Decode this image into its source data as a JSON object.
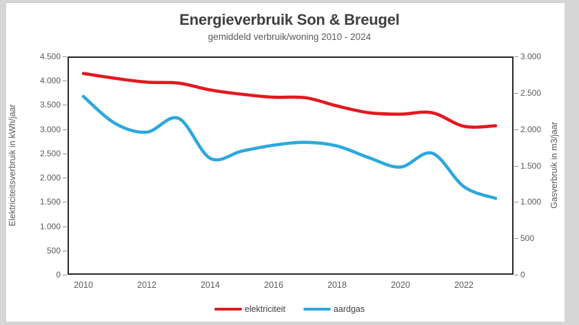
{
  "title": "Energieverbruik Son & Breugel",
  "subtitle": "gemiddeld verbruik/woning 2010 - 2024",
  "colors": {
    "elektriciteit": "#e2191f",
    "aardgas": "#2ca8de",
    "grid": "#d9d9d9",
    "plot_border": "#262626",
    "axis_text": "#595959",
    "title_text": "#404040",
    "page_background": "#d6d6d6",
    "canvas_background": "#ffffff"
  },
  "left_axis": {
    "title": "Elektriciteitsverbruik in kWh/jaar",
    "tick_labels": [
      "4.500",
      "4.000",
      "3.500",
      "3.000",
      "2.500",
      "2.000",
      "1.500",
      "1.000",
      "500",
      "0"
    ],
    "tick_values": [
      4500,
      4000,
      3500,
      3000,
      2500,
      2000,
      1500,
      1000,
      500,
      0
    ],
    "max": 4500
  },
  "right_axis": {
    "title": "Gasverbruik in m3/jaar",
    "tick_labels": [
      "3.000",
      "2.500",
      "2.000",
      "1.500",
      "1.000",
      "500",
      "0"
    ],
    "tick_values": [
      3000,
      2500,
      2000,
      1500,
      1000,
      500,
      0
    ],
    "max": 3000
  },
  "x_axis": {
    "tick_labels": [
      "2010",
      "2012",
      "2014",
      "2016",
      "2018",
      "2020",
      "2022"
    ],
    "tick_years": [
      2010,
      2012,
      2014,
      2016,
      2018,
      2020,
      2022
    ]
  },
  "legend": {
    "items": [
      {
        "label": "elektriciteit",
        "color": "#e2191f"
      },
      {
        "label": "aardgas",
        "color": "#2ca8de"
      }
    ]
  },
  "chart_data": {
    "type": "line",
    "title": "Energieverbruik Son & Breugel",
    "subtitle": "gemiddeld verbruik/woning 2010 - 2024",
    "x": [
      2010,
      2011,
      2012,
      2013,
      2014,
      2015,
      2016,
      2017,
      2018,
      2019,
      2020,
      2021,
      2022,
      2023
    ],
    "series": [
      {
        "name": "elektriciteit",
        "axis": "left",
        "unit": "kWh/jaar",
        "color": "#e2191f",
        "values": [
          4150,
          4050,
          3970,
          3950,
          3810,
          3720,
          3660,
          3650,
          3480,
          3340,
          3310,
          3340,
          3060,
          3070
        ]
      },
      {
        "name": "aardgas",
        "axis": "right",
        "unit": "m3/jaar",
        "color": "#2ca8de",
        "values": [
          2450,
          2080,
          1960,
          2150,
          1600,
          1700,
          1780,
          1820,
          1770,
          1610,
          1480,
          1670,
          1210,
          1050
        ]
      }
    ],
    "left_ylabel": "Elektriciteitsverbruik in kWh/jaar",
    "right_ylabel": "Gasverbruik in m3/jaar",
    "left_ylim": [
      0,
      4500
    ],
    "right_ylim": [
      0,
      3000
    ],
    "grid": true,
    "smooth": true,
    "legend_position": "bottom"
  }
}
